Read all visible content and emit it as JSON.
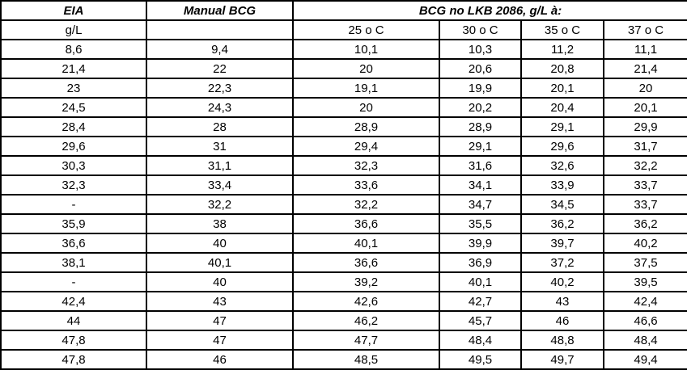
{
  "table": {
    "header_row1": {
      "eia": "EIA",
      "manual_bcg": "Manual BCG",
      "bcg_lkb": "BCG no LKB 2086, g/L à:"
    },
    "header_row2": [
      "g/L",
      "",
      "25 o C",
      "30 o C",
      "35 o C",
      "37 o C"
    ],
    "rows": [
      [
        "8,6",
        "9,4",
        "10,1",
        "10,3",
        "11,2",
        "11,1"
      ],
      [
        "21,4",
        "22",
        "20",
        "20,6",
        "20,8",
        "21,4"
      ],
      [
        "23",
        "22,3",
        "19,1",
        "19,9",
        "20,1",
        "20"
      ],
      [
        "24,5",
        "24,3",
        "20",
        "20,2",
        "20,4",
        "20,1"
      ],
      [
        "28,4",
        "28",
        "28,9",
        "28,9",
        "29,1",
        "29,9"
      ],
      [
        "29,6",
        "31",
        "29,4",
        "29,1",
        "29,6",
        "31,7"
      ],
      [
        "30,3",
        "31,1",
        "32,3",
        "31,6",
        "32,6",
        "32,2"
      ],
      [
        "32,3",
        "33,4",
        "33,6",
        "34,1",
        "33,9",
        "33,7"
      ],
      [
        "-",
        "32,2",
        "32,2",
        "34,7",
        "34,5",
        "33,7"
      ],
      [
        "35,9",
        "38",
        "36,6",
        "35,5",
        "36,2",
        "36,2"
      ],
      [
        "36,6",
        "40",
        "40,1",
        "39,9",
        "39,7",
        "40,2"
      ],
      [
        "38,1",
        "40,1",
        "36,6",
        "36,9",
        "37,2",
        "37,5"
      ],
      [
        "-",
        "40",
        "39,2",
        "40,1",
        "40,2",
        "39,5"
      ],
      [
        "42,4",
        "43",
        "42,6",
        "42,7",
        "43",
        "42,4"
      ],
      [
        "44",
        "47",
        "46,2",
        "45,7",
        "46",
        "46,6"
      ],
      [
        "47,8",
        "47",
        "47,7",
        "48,4",
        "48,8",
        "48,4"
      ],
      [
        "47,8",
        "46",
        "48,5",
        "49,5",
        "49,7",
        "49,4"
      ]
    ],
    "colors": {
      "border": "#000000",
      "text": "#000000",
      "background": "#ffffff"
    }
  }
}
